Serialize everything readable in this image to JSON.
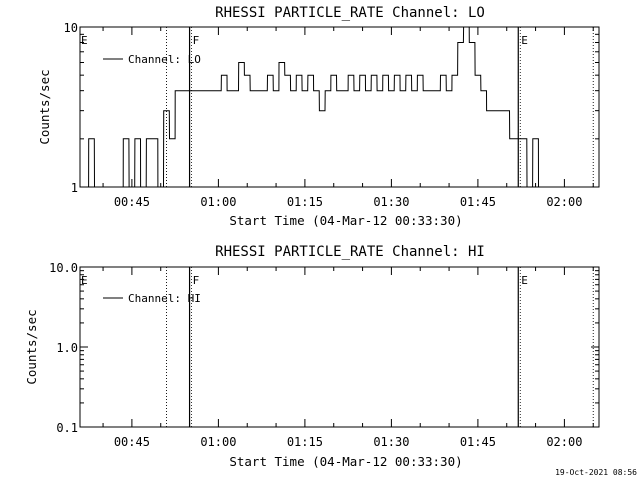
{
  "chart_data": [
    {
      "type": "line",
      "title": "RHESSI PARTICLE_RATE Channel: LO",
      "xlabel": "Start Time (04-Mar-12 00:33:30)",
      "ylabel": "Counts/sec",
      "y_scale": "log",
      "ylim": [
        1,
        10
      ],
      "xlim": [
        "00:36",
        "02:06"
      ],
      "x_ticks": [
        "00:45",
        "01:00",
        "01:15",
        "01:30",
        "01:45",
        "02:00"
      ],
      "y_ticks": [
        "1",
        "10"
      ],
      "grid": false,
      "legend": "top-left",
      "legend_entry": "Channel: LO",
      "markers": [
        {
          "label": "E",
          "x": "00:36",
          "style": "none"
        },
        {
          "label": "",
          "x": "00:51",
          "style": "dotted"
        },
        {
          "label": "F",
          "x": "00:55",
          "style": "solid"
        },
        {
          "label": "E",
          "x": "01:52",
          "style": "solid"
        },
        {
          "label": "",
          "x": "02:05",
          "style": "dotted"
        }
      ],
      "series": [
        {
          "name": "Channel: LO",
          "x": [
            "00:37",
            "00:38",
            "00:39",
            "00:40",
            "00:41",
            "00:42",
            "00:43",
            "00:44",
            "00:45",
            "00:46",
            "00:47",
            "00:48",
            "00:49",
            "00:50",
            "00:51",
            "00:52",
            "00:53",
            "00:54",
            "00:55",
            "00:56",
            "00:57",
            "00:58",
            "00:59",
            "01:00",
            "01:01",
            "01:02",
            "01:03",
            "01:04",
            "01:05",
            "01:06",
            "01:07",
            "01:08",
            "01:09",
            "01:10",
            "01:11",
            "01:12",
            "01:13",
            "01:14",
            "01:15",
            "01:16",
            "01:17",
            "01:18",
            "01:19",
            "01:20",
            "01:21",
            "01:22",
            "01:23",
            "01:24",
            "01:25",
            "01:26",
            "01:27",
            "01:28",
            "01:29",
            "01:30",
            "01:31",
            "01:32",
            "01:33",
            "01:34",
            "01:35",
            "01:36",
            "01:37",
            "01:38",
            "01:39",
            "01:40",
            "01:41",
            "01:42",
            "01:43",
            "01:44",
            "01:45",
            "01:46",
            "01:47",
            "01:48",
            "01:49",
            "01:50",
            "01:51",
            "01:52",
            "01:53",
            "01:54",
            "01:55",
            "01:56",
            "01:57",
            "01:58",
            "01:59",
            "02:00",
            "02:01",
            "02:02",
            "02:03",
            "02:04"
          ],
          "values": [
            1,
            2,
            1,
            1,
            1,
            1,
            1,
            2,
            1,
            2,
            1,
            2,
            2,
            1,
            3,
            2,
            4,
            4,
            4,
            4,
            4,
            4,
            4,
            4,
            5,
            4,
            4,
            6,
            5,
            4,
            4,
            4,
            5,
            4,
            6,
            5,
            4,
            5,
            4,
            5,
            4,
            3,
            4,
            5,
            4,
            4,
            5,
            4,
            5,
            4,
            5,
            4,
            5,
            4,
            5,
            4,
            5,
            4,
            5,
            4,
            4,
            4,
            5,
            4,
            5,
            8,
            10,
            8,
            5,
            4,
            3,
            3,
            3,
            3,
            2,
            2,
            2,
            1,
            2,
            1,
            1,
            1,
            1,
            1,
            1,
            1,
            1,
            1
          ]
        }
      ]
    },
    {
      "type": "line",
      "title": "RHESSI PARTICLE_RATE Channel: HI",
      "xlabel": "Start Time (04-Mar-12 00:33:30)",
      "ylabel": "Counts/sec",
      "y_scale": "log",
      "ylim": [
        0.1,
        10
      ],
      "xlim": [
        "00:36",
        "02:06"
      ],
      "x_ticks": [
        "00:45",
        "01:00",
        "01:15",
        "01:30",
        "01:45",
        "02:00"
      ],
      "y_ticks": [
        "0.1",
        "1.0",
        "10.0"
      ],
      "grid": false,
      "legend": "top-left",
      "legend_entry": "Channel: HI",
      "markers": [
        {
          "label": "E",
          "x": "00:36",
          "style": "none"
        },
        {
          "label": "",
          "x": "00:51",
          "style": "dotted"
        },
        {
          "label": "F",
          "x": "00:55",
          "style": "solid"
        },
        {
          "label": "E",
          "x": "01:52",
          "style": "solid"
        },
        {
          "label": "",
          "x": "02:05",
          "style": "dotted"
        }
      ],
      "series": [
        {
          "name": "Channel: HI",
          "x": [],
          "values": []
        }
      ]
    }
  ],
  "footer": {
    "timestamp": "19-Oct-2021 08:56"
  }
}
